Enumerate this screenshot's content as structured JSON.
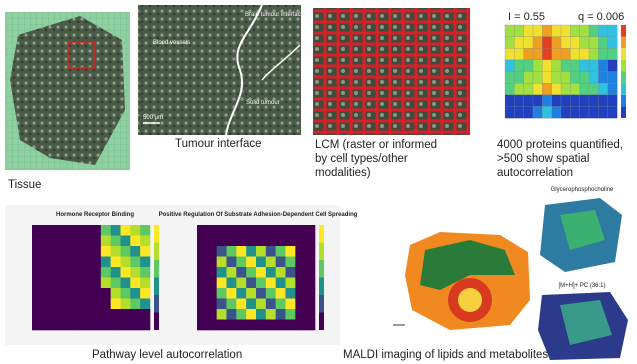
{
  "panels": {
    "tissue": {
      "caption": "Tissue"
    },
    "tumour": {
      "caption": "Tumour interface",
      "labels": [
        "Blood vessels",
        "Brain tumour interface",
        "Solid tumour",
        "500 µm"
      ]
    },
    "lcm": {
      "caption_lines": [
        "LCM (raster or informed",
        "by cell types/other",
        "modalities)"
      ]
    },
    "proteins": {
      "stat_i": "I = 0.55",
      "stat_q": "q = 0.006",
      "caption_lines": [
        "4000 proteins quantified,",
        ">500 show spatial",
        "autocorrelation"
      ]
    },
    "pathway": {
      "titles": [
        "Hormone Receptor Binding",
        "Positive Regulation Of Substrate Adhesion-Dependent Cell Spreading"
      ],
      "caption": "Pathway level autocorrelation"
    },
    "maldi": {
      "map_titles": [
        "Glycerophosphocholine",
        "[M+H]+ PC (36:1)"
      ],
      "caption": "MALDI imaging of lipids and metabolites"
    }
  }
}
